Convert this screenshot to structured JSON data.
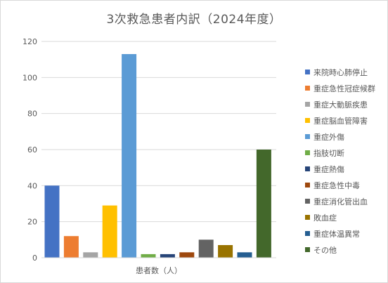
{
  "chart_data": {
    "type": "bar",
    "title": "3次救急患者内訳（2024年度）",
    "xlabel": "患者数（人）",
    "ylabel": "",
    "ylim": [
      0,
      120
    ],
    "yticks": [
      0,
      20,
      40,
      60,
      80,
      100,
      120
    ],
    "grid": true,
    "legend_position": "right",
    "categories": [
      "患者数（人）"
    ],
    "series": [
      {
        "name": "来院時心肺停止",
        "values": [
          40
        ],
        "color": "#4472c4"
      },
      {
        "name": "重症急性冠症候群",
        "values": [
          12
        ],
        "color": "#ed7d31"
      },
      {
        "name": "重症大動脈疾患",
        "values": [
          3
        ],
        "color": "#a5a5a5"
      },
      {
        "name": "重症脳血管障害",
        "values": [
          29
        ],
        "color": "#ffc000"
      },
      {
        "name": "重症外傷",
        "values": [
          113
        ],
        "color": "#5b9bd5"
      },
      {
        "name": "指肢切断",
        "values": [
          2
        ],
        "color": "#70ad47"
      },
      {
        "name": "重症熱傷",
        "values": [
          2
        ],
        "color": "#264478"
      },
      {
        "name": "重症急性中毒",
        "values": [
          3
        ],
        "color": "#9e480e"
      },
      {
        "name": "重症消化管出血",
        "values": [
          10
        ],
        "color": "#636363"
      },
      {
        "name": "敗血症",
        "values": [
          7
        ],
        "color": "#997300"
      },
      {
        "name": "重症体温異常",
        "values": [
          3
        ],
        "color": "#255e91"
      },
      {
        "name": "その他",
        "values": [
          60
        ],
        "color": "#43682b"
      }
    ]
  }
}
